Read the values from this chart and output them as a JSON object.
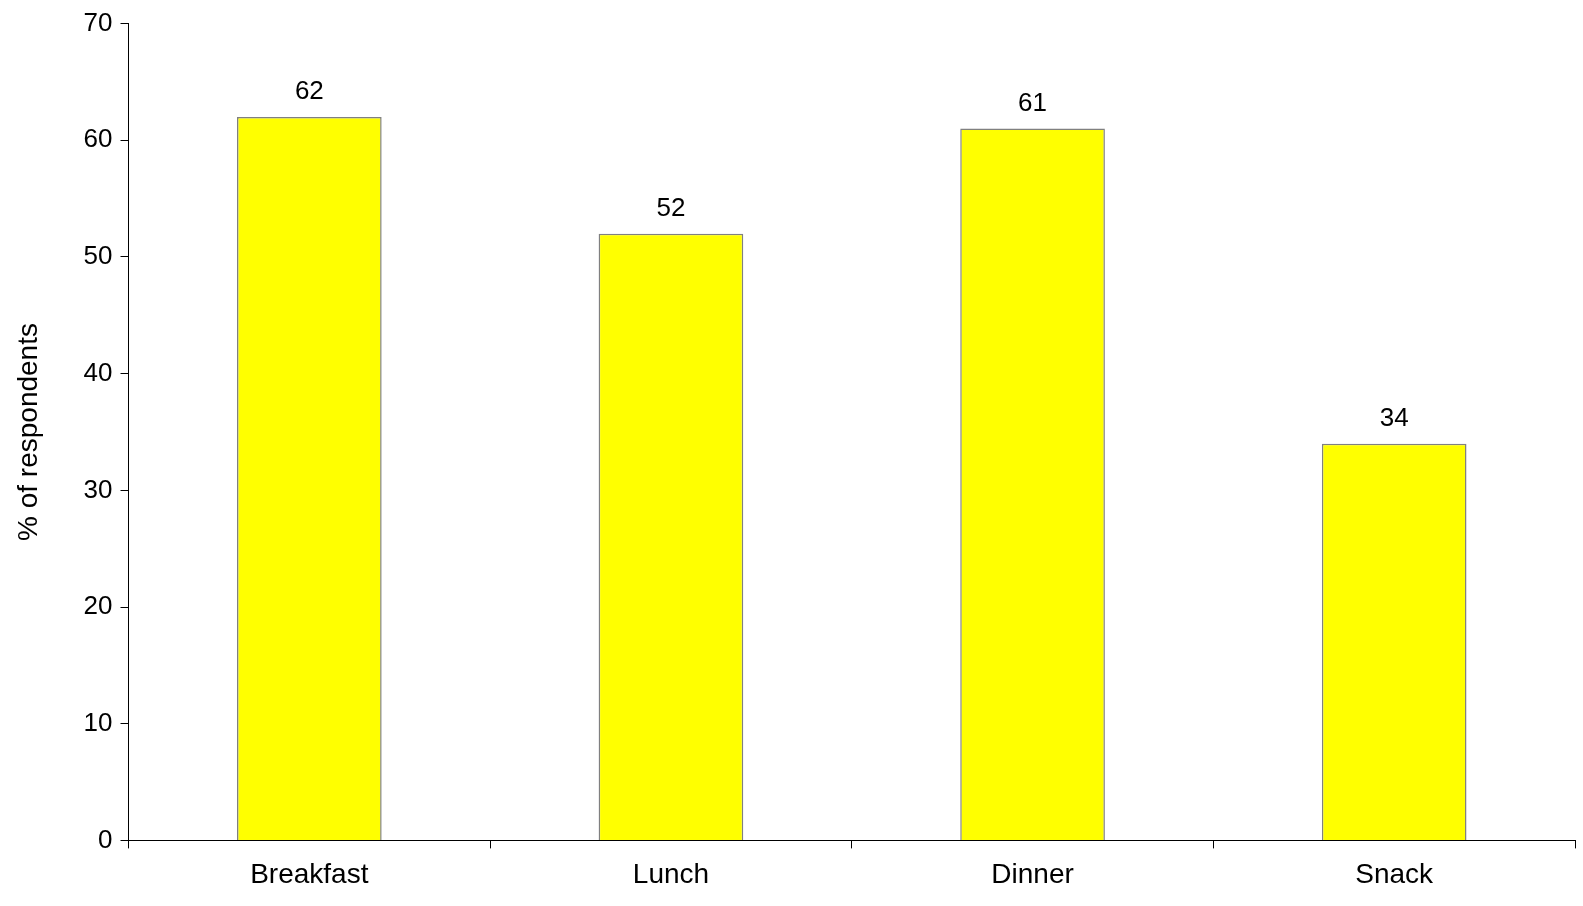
{
  "chart_data": {
    "type": "bar",
    "ylabel": "% of respondents",
    "categories": [
      "Breakfast",
      "Lunch",
      "Dinner",
      "Snack"
    ],
    "values": [
      62,
      52,
      61,
      34
    ],
    "color": "#ffff00",
    "ylim": [
      0,
      70
    ],
    "yticks": [
      0,
      10,
      20,
      30,
      40,
      50,
      60,
      70
    ],
    "grid": false,
    "legend": false,
    "data_labels": true
  }
}
